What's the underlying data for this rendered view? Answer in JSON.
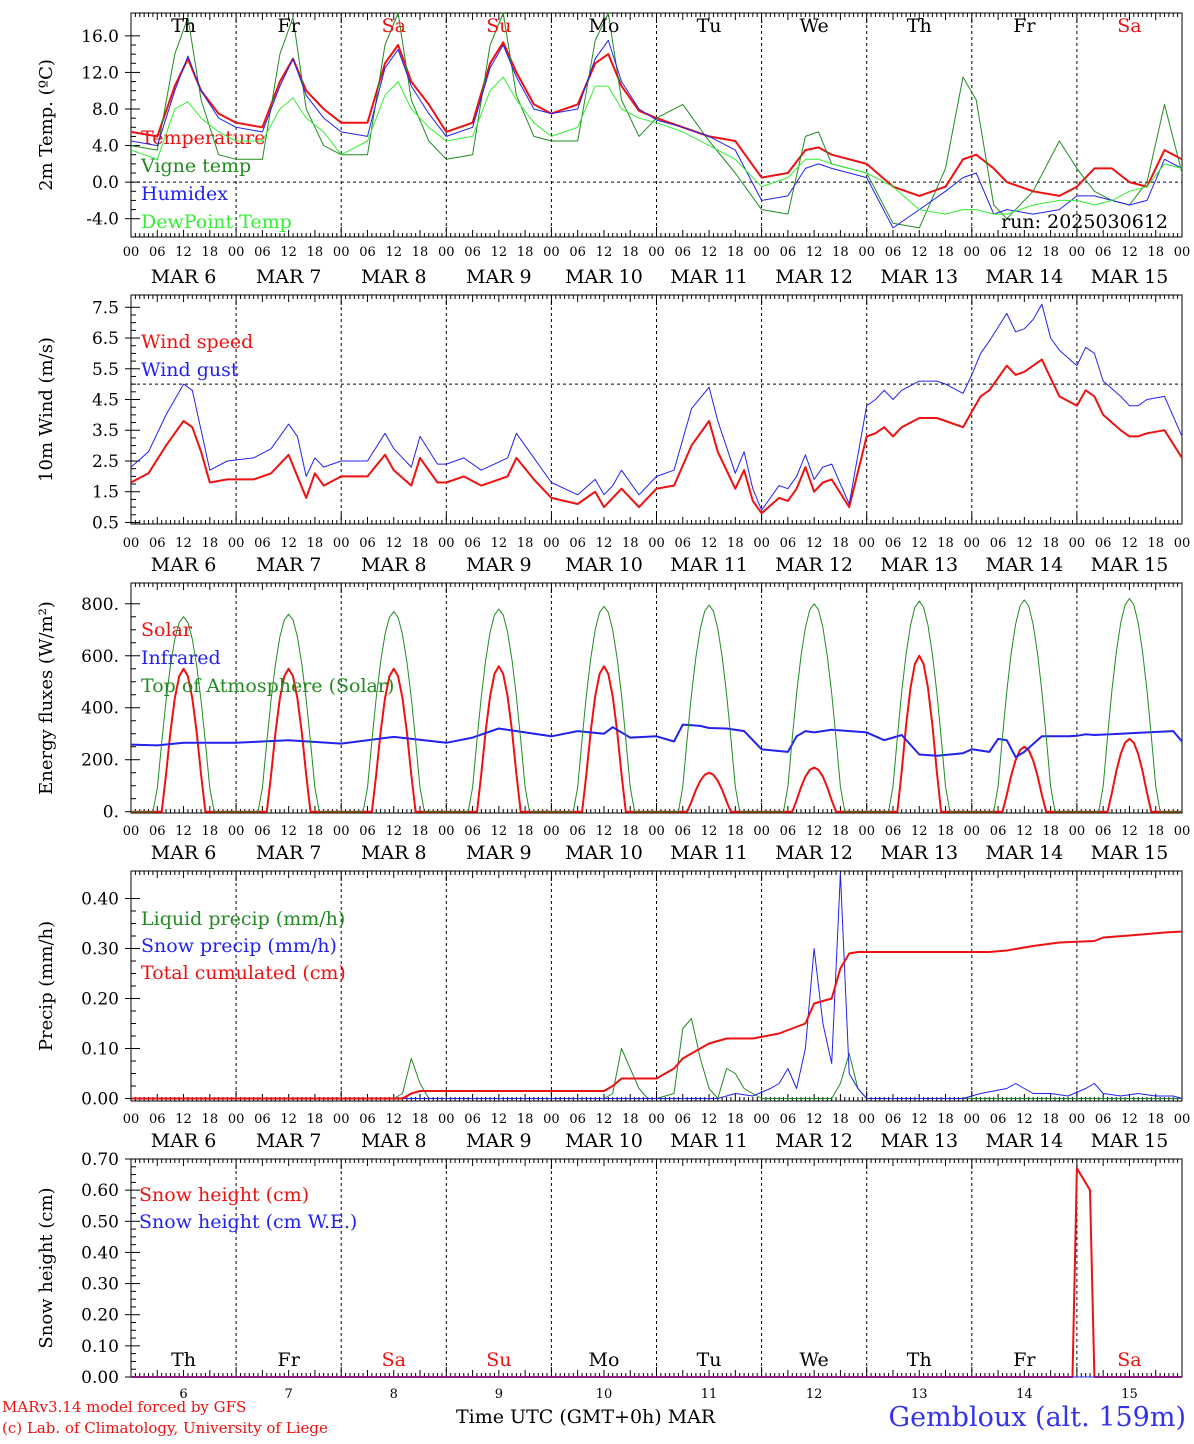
{
  "days": {
    "names": [
      "Th",
      "Fr",
      "Sa",
      "Su",
      "Mo",
      "Tu",
      "We",
      "Th",
      "Fr",
      "Sa"
    ],
    "weekend_color": "#ee1111",
    "weekday_color": "#000000",
    "month_labels": [
      "MAR  6",
      "MAR  7",
      "MAR  8",
      "MAR  9",
      "MAR 10",
      "MAR 11",
      "MAR 12",
      "MAR 13",
      "MAR 14",
      "MAR 15"
    ],
    "hour_labels": [
      "00",
      "06",
      "12",
      "18"
    ],
    "final_hour_label": "00",
    "bottom_day_numbers": [
      "6",
      "7",
      "8",
      "9",
      "10",
      "11",
      "12",
      "13",
      "14",
      "15"
    ]
  },
  "footer": {
    "model": "MARv3.14 model forced by GFS",
    "copyright": "(c) Lab. of Climatology, University of Liege",
    "time_axis": "Time UTC (GMT+0h) MAR",
    "station": "Gembloux (alt. 159m)"
  },
  "chart_data": [
    {
      "type": "line",
      "ylabel": "2m Temp. (ºC)",
      "ylim": [
        -6,
        18.5
      ],
      "yticks": [
        16.0,
        12.0,
        8.0,
        4.0,
        0.0,
        -4.0
      ],
      "ytick_labels": [
        "16.0",
        "12.0",
        "8.0",
        "4.0",
        "0.0",
        "-4.0"
      ],
      "reference_line": 0,
      "run_label": "run: 2025030612",
      "x_hours": [
        0,
        6,
        10,
        13,
        16,
        20,
        24,
        30,
        34,
        37,
        40,
        44,
        48,
        54,
        58,
        61,
        64,
        68,
        72,
        78,
        82,
        85,
        88,
        92,
        96,
        102,
        106,
        109,
        112,
        116,
        120,
        126,
        132,
        138,
        144,
        150,
        154,
        157,
        160,
        168,
        174,
        180,
        186,
        190,
        193,
        197,
        200,
        206,
        212,
        216,
        220,
        224,
        228,
        232,
        236,
        240
      ],
      "series": [
        {
          "name": "Temperature",
          "color": "#ee1111",
          "width": 2,
          "values": [
            5.5,
            5.0,
            10.5,
            13.5,
            10.0,
            7.5,
            6.5,
            6.0,
            11.0,
            13.5,
            10.0,
            8.0,
            6.5,
            6.5,
            13.0,
            15.0,
            11.0,
            8.5,
            5.5,
            6.5,
            13.0,
            15.3,
            12.0,
            8.5,
            7.5,
            8.5,
            13.0,
            14.0,
            10.5,
            7.8,
            7.0,
            6.0,
            5.0,
            4.5,
            0.5,
            1.0,
            3.5,
            3.8,
            3.0,
            2.0,
            -0.5,
            -1.5,
            -0.5,
            2.5,
            3.0,
            1.5,
            0.0,
            -1.0,
            -1.5,
            -0.5,
            1.5,
            1.5,
            0.0,
            -0.5,
            3.5,
            2.5
          ]
        },
        {
          "name": "Vigne temp",
          "color": "#228b22",
          "width": 1,
          "values": [
            4.0,
            3.5,
            14.0,
            18.0,
            9.0,
            3.0,
            2.5,
            2.5,
            14.0,
            18.0,
            8.0,
            4.0,
            3.0,
            3.0,
            15.0,
            18.5,
            9.0,
            4.5,
            2.5,
            3.0,
            15.0,
            18.5,
            9.5,
            5.0,
            4.5,
            4.5,
            15.5,
            18.5,
            9.0,
            5.0,
            7.0,
            8.5,
            4.5,
            1.0,
            -3.0,
            -3.5,
            5.0,
            5.5,
            2.0,
            1.0,
            -4.5,
            -5.0,
            1.5,
            11.5,
            9.0,
            -2.5,
            -4.0,
            -1.0,
            4.5,
            1.5,
            -1.0,
            -2.0,
            -2.5,
            0.0,
            8.5,
            1.0
          ]
        },
        {
          "name": "Humidex",
          "color": "#2222ee",
          "width": 1,
          "values": [
            4.5,
            4.0,
            10.0,
            13.8,
            10.0,
            7.0,
            6.0,
            5.5,
            10.5,
            13.5,
            9.5,
            7.0,
            5.5,
            5.0,
            12.5,
            14.5,
            10.5,
            7.5,
            5.0,
            6.0,
            12.5,
            15.0,
            11.5,
            8.0,
            7.5,
            8.0,
            13.5,
            15.5,
            11.0,
            8.0,
            6.8,
            6.0,
            5.0,
            3.5,
            -2.0,
            -1.5,
            1.5,
            2.0,
            1.5,
            0.5,
            -5.0,
            -3.0,
            -1.0,
            0.5,
            1.0,
            -3.5,
            -3.0,
            -3.5,
            -3.0,
            -1.5,
            -1.5,
            -2.0,
            -2.5,
            -2.0,
            2.5,
            1.5
          ]
        },
        {
          "name": "DewPoint Temp",
          "color": "#33ee33",
          "width": 1,
          "values": [
            3.5,
            2.5,
            8.0,
            8.8,
            7.0,
            5.5,
            4.5,
            4.5,
            8.0,
            9.2,
            7.0,
            5.5,
            3.0,
            4.5,
            9.5,
            11.0,
            8.0,
            6.0,
            4.5,
            5.0,
            10.0,
            11.5,
            9.0,
            6.5,
            5.0,
            6.0,
            10.5,
            10.5,
            8.0,
            7.0,
            6.5,
            5.5,
            4.0,
            2.5,
            -0.5,
            0.5,
            2.5,
            2.5,
            2.0,
            1.0,
            -0.5,
            -3.0,
            -3.5,
            -3.0,
            -3.0,
            -3.5,
            -3.5,
            -2.5,
            -2.0,
            -2.0,
            -2.5,
            -2.0,
            -1.0,
            -0.5,
            2.0,
            1.5
          ]
        }
      ]
    },
    {
      "type": "line",
      "ylabel": "10m Wind (m/s)",
      "ylim": [
        0.45,
        7.9
      ],
      "yticks": [
        7.5,
        6.5,
        5.5,
        4.5,
        3.5,
        2.5,
        1.5,
        0.5
      ],
      "ytick_labels": [
        "7.5",
        "6.5",
        "5.5",
        "4.5",
        "3.5",
        "2.5",
        "1.5",
        "0.5"
      ],
      "reference_line": 5,
      "x_hours": [
        0,
        4,
        8,
        12,
        14,
        16,
        18,
        22,
        28,
        32,
        36,
        38,
        40,
        42,
        44,
        48,
        54,
        58,
        60,
        64,
        66,
        70,
        72,
        76,
        80,
        86,
        88,
        92,
        96,
        102,
        106,
        108,
        110,
        112,
        116,
        120,
        124,
        128,
        132,
        134,
        138,
        140,
        142,
        144,
        148,
        150,
        152,
        154,
        156,
        158,
        160,
        164,
        168,
        170,
        172,
        174,
        176,
        180,
        184,
        186,
        190,
        192,
        194,
        196,
        200,
        202,
        204,
        206,
        208,
        210,
        212,
        216,
        218,
        220,
        222,
        226,
        228,
        230,
        232,
        236,
        240
      ],
      "series": [
        {
          "name": "Wind speed",
          "color": "#ee1111",
          "width": 2,
          "values": [
            1.8,
            2.1,
            3.0,
            3.8,
            3.6,
            2.8,
            1.8,
            1.9,
            1.9,
            2.1,
            2.7,
            2.0,
            1.3,
            2.1,
            1.7,
            2.0,
            2.0,
            2.7,
            2.2,
            1.7,
            2.6,
            1.8,
            1.8,
            2.0,
            1.7,
            2.0,
            2.6,
            1.9,
            1.3,
            1.1,
            1.5,
            1.0,
            1.3,
            1.6,
            1.0,
            1.6,
            1.7,
            3.0,
            3.8,
            2.8,
            1.6,
            2.2,
            1.2,
            0.8,
            1.3,
            1.2,
            1.6,
            2.3,
            1.5,
            1.8,
            1.9,
            1.0,
            3.3,
            3.4,
            3.6,
            3.3,
            3.6,
            3.9,
            3.9,
            3.8,
            3.6,
            4.1,
            4.6,
            4.8,
            5.6,
            5.3,
            5.4,
            5.6,
            5.8,
            5.2,
            4.6,
            4.3,
            4.8,
            4.6,
            4.0,
            3.5,
            3.3,
            3.3,
            3.4,
            3.5,
            2.6
          ]
        },
        {
          "name": "Wind gust",
          "color": "#2222ee",
          "width": 1,
          "values": [
            2.3,
            2.8,
            4.0,
            5.0,
            4.8,
            3.5,
            2.2,
            2.5,
            2.6,
            2.9,
            3.7,
            3.3,
            2.0,
            2.6,
            2.3,
            2.5,
            2.5,
            3.4,
            2.9,
            2.3,
            3.3,
            2.4,
            2.4,
            2.6,
            2.2,
            2.6,
            3.4,
            2.6,
            1.8,
            1.4,
            1.9,
            1.4,
            1.7,
            2.2,
            1.4,
            2.0,
            2.2,
            4.2,
            4.9,
            3.8,
            2.1,
            2.8,
            1.6,
            0.9,
            1.7,
            1.6,
            2.0,
            2.7,
            1.9,
            2.3,
            2.4,
            1.1,
            4.3,
            4.5,
            4.8,
            4.5,
            4.8,
            5.1,
            5.1,
            5.0,
            4.7,
            5.3,
            6.0,
            6.4,
            7.3,
            6.7,
            6.8,
            7.1,
            7.6,
            6.5,
            6.1,
            5.6,
            6.2,
            6.0,
            5.1,
            4.6,
            4.3,
            4.3,
            4.5,
            4.6,
            3.3
          ]
        }
      ]
    },
    {
      "type": "line",
      "ylabel": "Energy fluxes (W/m²)",
      "ylim": [
        -5,
        880
      ],
      "yticks": [
        800,
        600,
        400,
        200,
        0
      ],
      "ytick_labels": [
        "800.",
        "600.",
        "400.",
        "200.",
        "0."
      ],
      "series": [
        {
          "name": "Solar",
          "color": "#ee1111",
          "width": 2,
          "peaks": [
            550,
            550,
            550,
            560,
            560,
            150,
            170,
            600,
            250,
            280
          ]
        },
        {
          "name": "Infrared",
          "color": "#2222ee",
          "width": 2,
          "x_hours": [
            0,
            6,
            12,
            24,
            36,
            48,
            60,
            72,
            78,
            84,
            88,
            96,
            102,
            108,
            110,
            114,
            120,
            124,
            126,
            130,
            132,
            136,
            140,
            144,
            150,
            152,
            154,
            156,
            160,
            168,
            172,
            176,
            180,
            184,
            190,
            192,
            196,
            198,
            200,
            202,
            204,
            208,
            214,
            216,
            218,
            220,
            226,
            232,
            238,
            240
          ],
          "values": [
            258,
            255,
            265,
            265,
            275,
            262,
            288,
            265,
            285,
            320,
            310,
            290,
            310,
            300,
            325,
            285,
            290,
            270,
            335,
            330,
            322,
            320,
            310,
            240,
            230,
            290,
            310,
            305,
            315,
            305,
            275,
            295,
            220,
            215,
            225,
            240,
            230,
            280,
            275,
            210,
            230,
            290,
            290,
            292,
            298,
            295,
            300,
            305,
            310,
            270
          ]
        },
        {
          "name": "Top of Atmosphere (Solar)",
          "color": "#228b22",
          "width": 1,
          "peaks": [
            750,
            760,
            770,
            780,
            790,
            795,
            800,
            810,
            815,
            820
          ]
        }
      ]
    },
    {
      "type": "line",
      "ylabel": "Precip (mm/h)",
      "ylim": [
        -0.005,
        0.455
      ],
      "yticks": [
        0.4,
        0.3,
        0.2,
        0.1,
        0.0
      ],
      "ytick_labels": [
        "0.40",
        "0.30",
        "0.20",
        "0.10",
        "0.00"
      ],
      "series": [
        {
          "name": "Liquid precip (mm/h)",
          "color": "#228b22",
          "width": 1,
          "x_hours": [
            0,
            60,
            62,
            64,
            66,
            68,
            108,
            110,
            112,
            114,
            116,
            118,
            120,
            124,
            126,
            128,
            130,
            132,
            134,
            136,
            138,
            140,
            142,
            144,
            160,
            162,
            164,
            166,
            168,
            240
          ],
          "values": [
            0,
            0,
            0.01,
            0.08,
            0.03,
            0,
            0,
            0.01,
            0.1,
            0.06,
            0.02,
            0,
            0,
            0.01,
            0.14,
            0.16,
            0.08,
            0.02,
            0,
            0.06,
            0.05,
            0.02,
            0.01,
            0,
            0,
            0.03,
            0.09,
            0.02,
            0,
            0
          ]
        },
        {
          "name": "Snow precip (mm/h)",
          "color": "#2222ee",
          "width": 1,
          "x_hours": [
            0,
            134,
            138,
            142,
            146,
            148,
            150,
            152,
            154,
            156,
            158,
            160,
            162,
            164,
            166,
            168,
            190,
            194,
            200,
            202,
            204,
            206,
            210,
            214,
            218,
            220,
            222,
            226,
            230,
            234,
            238,
            240
          ],
          "values": [
            0,
            0,
            0.01,
            0.005,
            0.02,
            0.03,
            0.06,
            0.02,
            0.1,
            0.3,
            0.15,
            0.07,
            0.45,
            0.05,
            0.02,
            0,
            0,
            0.01,
            0.02,
            0.03,
            0.02,
            0.01,
            0.01,
            0.005,
            0.02,
            0.03,
            0.01,
            0.005,
            0.01,
            0.005,
            0.005,
            0
          ]
        },
        {
          "name": "Total cumulated (cm)",
          "color": "#ee1111",
          "width": 2,
          "x_hours": [
            0,
            62,
            64,
            66,
            108,
            110,
            112,
            120,
            124,
            126,
            128,
            130,
            132,
            136,
            142,
            148,
            154,
            156,
            160,
            162,
            164,
            166,
            168,
            196,
            200,
            206,
            212,
            220,
            222,
            228,
            236,
            240
          ],
          "values": [
            0,
            0,
            0.01,
            0.015,
            0.015,
            0.025,
            0.04,
            0.04,
            0.06,
            0.08,
            0.09,
            0.1,
            0.11,
            0.12,
            0.12,
            0.13,
            0.15,
            0.19,
            0.2,
            0.26,
            0.29,
            0.293,
            0.293,
            0.293,
            0.296,
            0.305,
            0.312,
            0.315,
            0.322,
            0.326,
            0.332,
            0.334
          ]
        }
      ]
    },
    {
      "type": "line",
      "ylabel": "Snow height (cm)",
      "ylim": [
        0,
        0.7
      ],
      "yticks": [
        0.7,
        0.6,
        0.5,
        0.4,
        0.3,
        0.2,
        0.1,
        0.0
      ],
      "ytick_labels": [
        "0.70",
        "0.60",
        "0.50",
        "0.40",
        "0.30",
        "0.20",
        "0.10",
        "0.00"
      ],
      "series": [
        {
          "name": "Snow height (cm)",
          "color": "#ee1111",
          "width": 2,
          "x_hours": [
            0,
            215,
            216,
            219,
            220,
            240
          ],
          "values": [
            0,
            0,
            0.67,
            0.6,
            0,
            0
          ]
        },
        {
          "name": "Snow height (cm W.E.)",
          "color": "#2222ee",
          "width": 1,
          "x_hours": [
            0,
            240
          ],
          "values": [
            0,
            0
          ]
        }
      ]
    }
  ]
}
